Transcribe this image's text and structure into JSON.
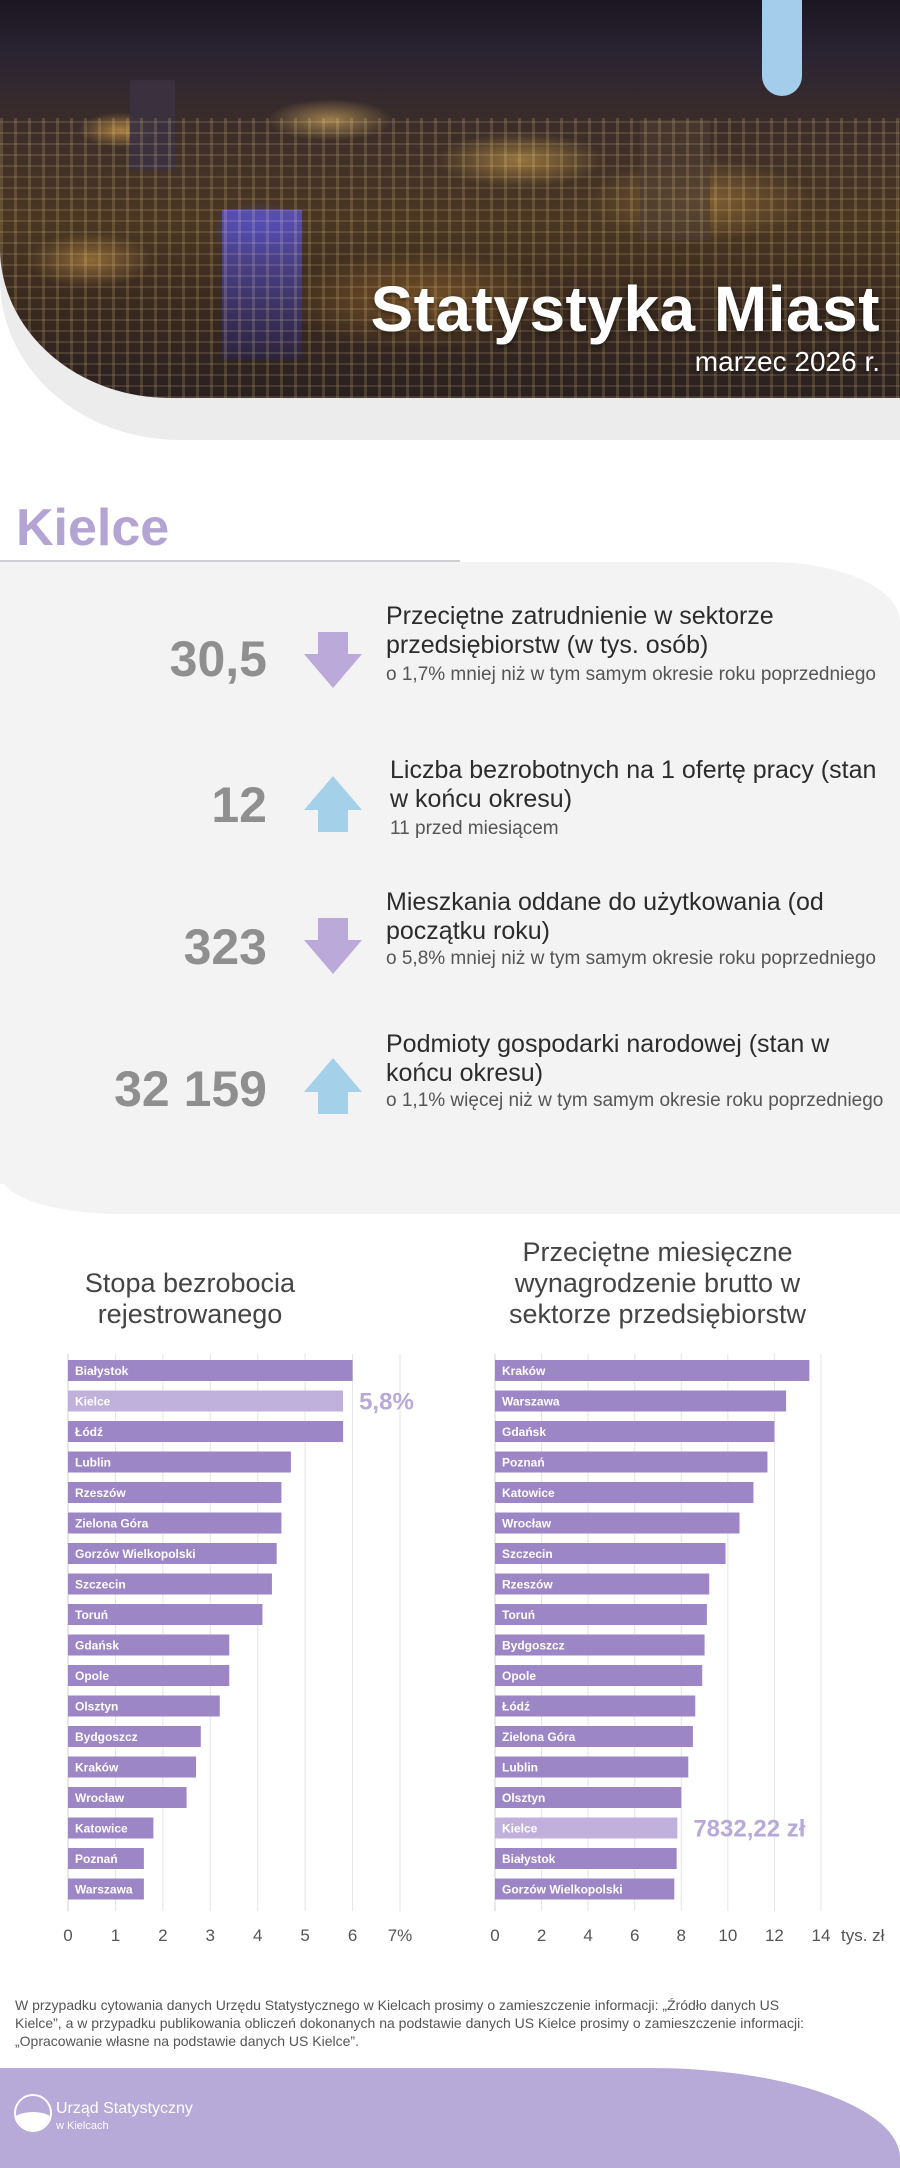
{
  "header": {
    "title": "Statystyka Miast",
    "date": "marzec 2026 r."
  },
  "city": "Kielce",
  "indicators": [
    {
      "value": "30,5",
      "direction": "down",
      "main": "Przeciętne zatrudnienie w sektorze przedsiębiorstw (w tys. osób)",
      "sub": "o 1,7% mniej niż w tym samym okresie roku poprzedniego"
    },
    {
      "value": "12",
      "direction": "up",
      "main": "Liczba bezrobotnych na 1 ofertę pracy (stan w końcu okresu)",
      "sub": "11 przed miesiącem"
    },
    {
      "value": "323",
      "direction": "down",
      "main": "Mieszkania oddane do użytkowania (od początku roku)",
      "sub": "o 5,8% mniej niż w tym samym okresie roku poprzedniego"
    },
    {
      "value": "32 159",
      "direction": "up",
      "main": "Podmioty gospodarki narodowej (stan w końcu okresu)",
      "sub": "o 1,1% więcej niż w tym samym okresie roku poprzedniego"
    }
  ],
  "colors": {
    "accent": "#b7a9d8",
    "bar": "#9c86c6",
    "bar_highlight": "#bfb1dc",
    "arrow_down": "#bba9d9",
    "arrow_up": "#a5d0ea"
  },
  "chart_data": [
    {
      "type": "bar",
      "orientation": "horizontal",
      "title": "Stopa bezrobocia rejestrowanego",
      "categories": [
        "Białystok",
        "Kielce",
        "Łódź",
        "Lublin",
        "Rzeszów",
        "Zielona Góra",
        "Gorzów Wielkopolski",
        "Szczecin",
        "Toruń",
        "Gdańsk",
        "Opole",
        "Olsztyn",
        "Bydgoszcz",
        "Kraków",
        "Wrocław",
        "Katowice",
        "Poznań",
        "Warszawa"
      ],
      "values": [
        6.0,
        5.8,
        5.8,
        4.7,
        4.5,
        4.5,
        4.4,
        4.3,
        4.1,
        3.4,
        3.4,
        3.2,
        2.8,
        2.7,
        2.5,
        1.8,
        1.6,
        1.6
      ],
      "highlight": "Kielce",
      "highlight_label": "5,8%",
      "xlim": [
        0,
        7
      ],
      "xticks": [
        "0",
        "1",
        "2",
        "3",
        "4",
        "5",
        "6",
        "7%"
      ]
    },
    {
      "type": "bar",
      "orientation": "horizontal",
      "title": "Przeciętne miesięczne wynagrodzenie brutto w sektorze przedsiębiorstw",
      "categories": [
        "Kraków",
        "Warszawa",
        "Gdańsk",
        "Poznań",
        "Katowice",
        "Wrocław",
        "Szczecin",
        "Rzeszów",
        "Toruń",
        "Bydgoszcz",
        "Opole",
        "Łódź",
        "Zielona Góra",
        "Lublin",
        "Olsztyn",
        "Kielce",
        "Białystok",
        "Gorzów Wielkopolski"
      ],
      "values": [
        13.5,
        12.5,
        12.0,
        11.7,
        11.1,
        10.5,
        9.9,
        9.2,
        9.1,
        9.0,
        8.9,
        8.6,
        8.5,
        8.3,
        8.0,
        7.83,
        7.8,
        7.7
      ],
      "highlight": "Kielce",
      "highlight_label": "7832,22 zł",
      "xlim": [
        0,
        14
      ],
      "xticks": [
        "0",
        "2",
        "4",
        "6",
        "8",
        "10",
        "12",
        "14"
      ],
      "xunit": "tys. zł"
    }
  ],
  "footnote": "W przypadku cytowania danych Urzędu Statystycznego w Kielcach prosimy o zamieszczenie informacji: „Źródło danych US Kielce”, a w przypadku publikowania obliczeń dokonanych na podstawie danych US Kielce prosimy o zamieszczenie informacji: „Opracowanie własne na podstawie danych US Kielce”.",
  "footer": {
    "org_name": "Urząd Statystyczny",
    "org_sub": "w Kielcach"
  }
}
